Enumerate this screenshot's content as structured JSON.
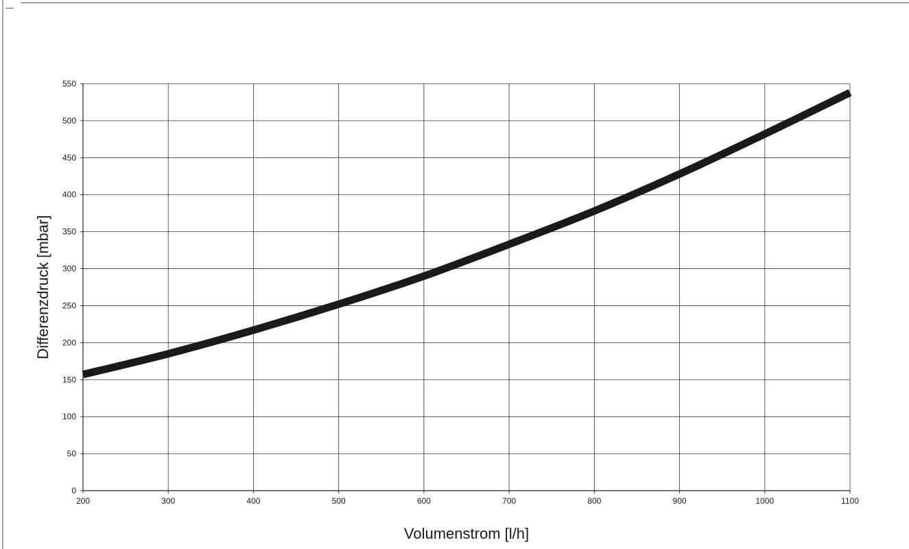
{
  "chart_data": {
    "type": "line",
    "title": "",
    "xlabel": "Volumenstrom [l/h]",
    "ylabel": "Differenzdruck [mbar]",
    "xlim": [
      200,
      1100
    ],
    "ylim": [
      0,
      550
    ],
    "x_ticks": [
      200,
      300,
      400,
      500,
      600,
      700,
      800,
      900,
      1000,
      1100
    ],
    "y_ticks": [
      0,
      50,
      100,
      150,
      200,
      250,
      300,
      350,
      400,
      450,
      500,
      550
    ],
    "grid": true,
    "legend": "none",
    "series": [
      {
        "color": "#1a1a1a",
        "x": [
          200,
          300,
          400,
          500,
          600,
          700,
          800,
          900,
          1000,
          1100
        ],
        "y": [
          157,
          185,
          217,
          252,
          290,
          333,
          378,
          428,
          482,
          538
        ]
      }
    ]
  }
}
